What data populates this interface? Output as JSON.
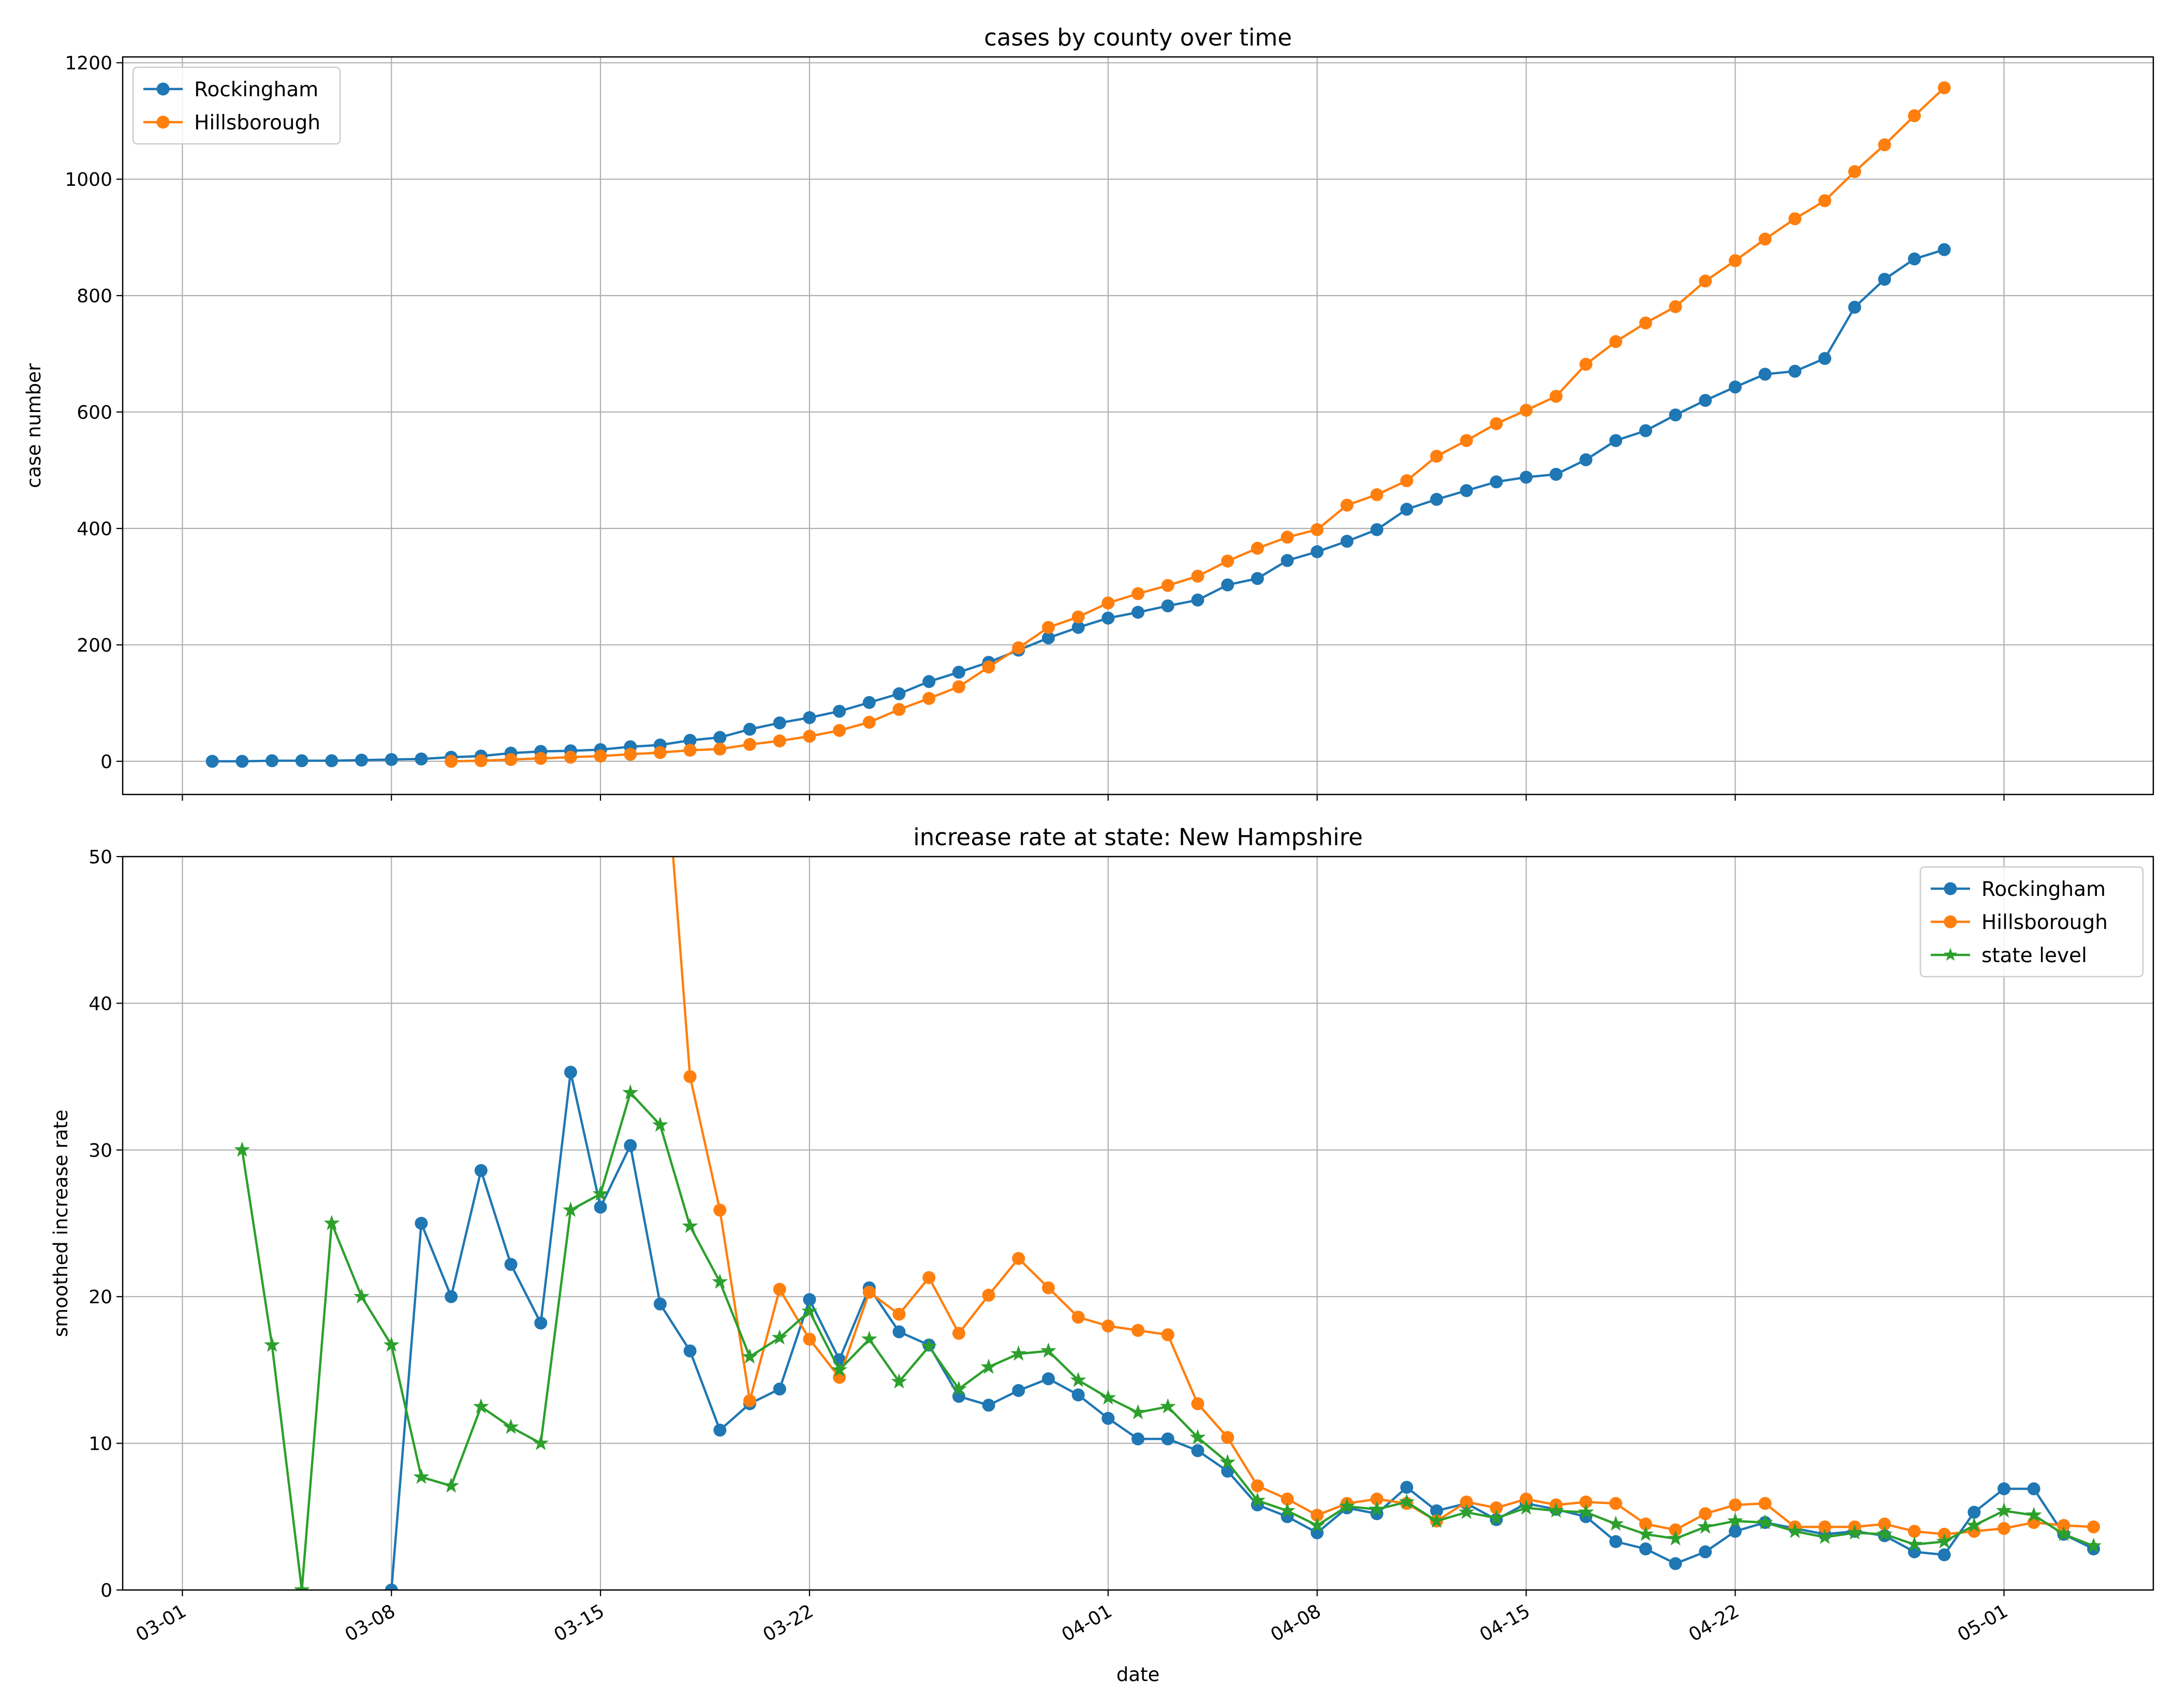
{
  "figure": {
    "xlabel": "date",
    "colors": {
      "rockingham": "#1f77b4",
      "hillsborough": "#ff7f0e",
      "state": "#2ca02c",
      "grid": "#b0b0b0"
    }
  },
  "chart_data": [
    {
      "type": "line",
      "title": "cases by county over time",
      "xlabel": "",
      "ylabel": "case number",
      "ylim": [
        -57,
        1210
      ],
      "xlim": [
        "2020-02-28",
        "2020-05-06"
      ],
      "grid": true,
      "legend": "top-left",
      "yticks": [
        0,
        200,
        400,
        600,
        800,
        1000,
        1200
      ],
      "xtick_dates": [
        "2020-03-01",
        "2020-03-08",
        "2020-03-15",
        "2020-03-22",
        "2020-04-01",
        "2020-04-08",
        "2020-04-15",
        "2020-04-22",
        "2020-05-01"
      ],
      "series": [
        {
          "name": "Rockingham",
          "color": "#1f77b4",
          "marker": "circle",
          "start": "2020-03-02",
          "values": [
            0,
            0,
            1,
            1,
            1,
            2,
            3,
            4,
            7,
            9,
            14,
            17,
            18,
            20,
            25,
            28,
            36,
            41,
            55,
            66,
            75,
            86,
            101,
            116,
            137,
            153,
            170,
            191,
            212,
            230,
            246,
            256,
            267,
            277,
            303,
            314,
            345,
            360,
            378,
            398,
            433,
            450,
            465,
            480,
            488,
            493,
            518,
            551,
            568,
            595,
            620,
            643,
            665,
            670,
            692,
            780,
            828,
            863,
            879
          ]
        },
        {
          "name": "Hillsborough",
          "color": "#ff7f0e",
          "marker": "circle",
          "start": "2020-03-10",
          "values": [
            0,
            1,
            3,
            5,
            7,
            9,
            12,
            15,
            19,
            21,
            29,
            35,
            43,
            53,
            67,
            89,
            108,
            128,
            162,
            195,
            230,
            248,
            272,
            288,
            302,
            318,
            344,
            366,
            385,
            398,
            440,
            458,
            482,
            524,
            551,
            580,
            603,
            627,
            682,
            721,
            753,
            781,
            825,
            860,
            897,
            932,
            963,
            1013,
            1059,
            1109,
            1157
          ]
        }
      ]
    },
    {
      "type": "line",
      "title": "increase rate at state: New Hampshire",
      "xlabel": "date",
      "ylabel": "smoothed increase rate",
      "ylim": [
        0,
        50
      ],
      "xlim": [
        "2020-02-28",
        "2020-05-06"
      ],
      "grid": true,
      "legend": "top-right",
      "yticks": [
        0,
        10,
        20,
        30,
        40,
        50
      ],
      "xticks": [
        {
          "label": "03-01",
          "date": "2020-03-01"
        },
        {
          "label": "03-08",
          "date": "2020-03-08"
        },
        {
          "label": "03-15",
          "date": "2020-03-15"
        },
        {
          "label": "03-22",
          "date": "2020-03-22"
        },
        {
          "label": "04-01",
          "date": "2020-04-01"
        },
        {
          "label": "04-08",
          "date": "2020-04-08"
        },
        {
          "label": "04-15",
          "date": "2020-04-15"
        },
        {
          "label": "04-22",
          "date": "2020-04-22"
        },
        {
          "label": "05-01",
          "date": "2020-05-01"
        }
      ],
      "series": [
        {
          "name": "Rockingham",
          "color": "#1f77b4",
          "marker": "circle",
          "start": "2020-03-08",
          "values": [
            0,
            25,
            20,
            28.6,
            22.2,
            18.2,
            35.3,
            26.1,
            30.3,
            19.5,
            16.3,
            10.9,
            12.7,
            13.7,
            19.8,
            15.7,
            20.6,
            17.6,
            16.7,
            13.2,
            12.6,
            13.6,
            14.4,
            13.3,
            11.7,
            10.3,
            10.3,
            9.5,
            8.1,
            5.8,
            5,
            3.9,
            5.6,
            5.2,
            7,
            5.4,
            5.9,
            4.8,
            5.9,
            5.5,
            5,
            3.3,
            2.8,
            1.8,
            2.6,
            4,
            4.6,
            4.2,
            3.8,
            4,
            3.7,
            2.6,
            2.4,
            5.3,
            6.9,
            6.9,
            3.8,
            2.8
          ]
        },
        {
          "name": "Hillsborough",
          "color": "#ff7f0e",
          "marker": "circle",
          "start": "2020-03-17",
          "values": [
            61.5,
            35,
            25.9,
            12.9,
            20.5,
            17.1,
            14.5,
            20.3,
            18.8,
            21.3,
            17.5,
            20.1,
            22.6,
            20.6,
            18.6,
            18,
            17.7,
            17.4,
            12.7,
            10.4,
            7.1,
            6.2,
            5.1,
            5.9,
            6.2,
            5.9,
            4.7,
            6,
            5.6,
            6.2,
            5.8,
            6,
            5.9,
            4.5,
            4.1,
            5.2,
            5.8,
            5.9,
            4.3,
            4.3,
            4.3,
            4.5,
            4,
            3.8,
            4,
            4.2,
            4.6,
            4.4,
            4.3
          ]
        },
        {
          "name": "state level",
          "color": "#2ca02c",
          "marker": "star",
          "start": "2020-03-03",
          "values": [
            30,
            16.7,
            0,
            25,
            20,
            16.7,
            7.7,
            7.1,
            12.5,
            11.1,
            10,
            25.9,
            27,
            33.9,
            31.7,
            24.8,
            21,
            15.9,
            17.2,
            19,
            15,
            17.1,
            14.2,
            16.6,
            13.7,
            15.2,
            16.1,
            16.3,
            14.3,
            13.1,
            12.1,
            12.5,
            10.4,
            8.7,
            6.1,
            5.4,
            4.4,
            5.7,
            5.5,
            6,
            4.7,
            5.3,
            4.9,
            5.6,
            5.4,
            5.3,
            4.5,
            3.8,
            3.5,
            4.3,
            4.7,
            4.6,
            4,
            3.6,
            3.9,
            3.8,
            3.1,
            3.3,
            4.4,
            5.4,
            5.1,
            3.8,
            3
          ]
        }
      ]
    }
  ]
}
